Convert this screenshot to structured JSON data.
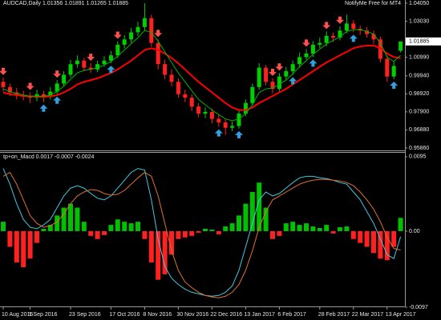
{
  "chart_data": [
    {
      "type": "candlestick",
      "title": "AUDCAD,Daily  1.01356 1.01891 1.01265 1.01885",
      "annotation": "NotifyMe Free for MT4",
      "categories": [
        "10 Aug 2016",
        null,
        null,
        null,
        "1 Sep 2016",
        null,
        null,
        null,
        null,
        null,
        "23 Sep 2016",
        null,
        null,
        null,
        null,
        null,
        "17 Oct 2016",
        null,
        null,
        null,
        null,
        "8 Nov 2016",
        null,
        null,
        null,
        null,
        "30 Nov 2016",
        null,
        null,
        null,
        null,
        "22 Dec 2016",
        null,
        null,
        null,
        null,
        "13 Jan 2017",
        null,
        null,
        null,
        null,
        "6 Feb 2017",
        null,
        null,
        null,
        null,
        null,
        "28 Feb 2017",
        null,
        null,
        null,
        null,
        "22 Mar 2017",
        null,
        null,
        null,
        null,
        "13 Apr 2017",
        null,
        null
      ],
      "open": [
        0.996,
        0.993,
        0.99,
        0.9885,
        0.988,
        0.987,
        0.989,
        0.9875,
        0.9905,
        0.995,
        1.0,
        1.006,
        1.008,
        1.004,
        1.003,
        1.006,
        1.008,
        1.011,
        1.017,
        1.02,
        1.024,
        1.027,
        1.032,
        1.018,
        1.006,
        1.0,
        0.996,
        0.989,
        0.987,
        0.982,
        0.978,
        0.979,
        0.975,
        0.973,
        0.97,
        0.971,
        0.978,
        0.984,
        0.993,
        1.004,
        0.996,
        0.992,
        0.999,
        1.002,
        1.006,
        1.01,
        1.012,
        1.017,
        1.018,
        1.022,
        1.021,
        1.025,
        1.029,
        1.026,
        1.025,
        1.023,
        1.02,
        1.009,
        0.999,
        1.01356
      ],
      "high": [
        0.9985,
        0.995,
        0.9925,
        0.991,
        0.99,
        0.9915,
        0.991,
        0.993,
        0.997,
        1.002,
        1.0085,
        1.011,
        1.0095,
        1.0065,
        1.008,
        1.0105,
        1.0135,
        1.019,
        1.0225,
        1.0265,
        1.03,
        1.0405,
        1.034,
        1.02,
        1.0085,
        1.003,
        0.998,
        0.9915,
        0.989,
        0.984,
        0.9815,
        0.981,
        0.9775,
        0.975,
        0.9735,
        0.98,
        0.986,
        0.995,
        1.0065,
        1.0055,
        0.998,
        1.001,
        1.0045,
        1.008,
        1.0125,
        1.0145,
        1.019,
        1.021,
        1.0245,
        1.024,
        1.0275,
        1.034,
        1.031,
        1.028,
        1.027,
        1.025,
        1.0215,
        1.011,
        1.0075,
        1.01891
      ],
      "low": [
        0.9905,
        0.988,
        0.986,
        0.9855,
        0.984,
        0.985,
        0.9845,
        0.986,
        0.989,
        0.9935,
        0.9985,
        1.004,
        1.002,
        1.001,
        1.0015,
        1.0045,
        1.0065,
        1.0095,
        1.015,
        1.018,
        1.022,
        1.025,
        1.016,
        1.003,
        0.9975,
        0.9935,
        0.987,
        0.9845,
        0.9795,
        0.976,
        0.9755,
        0.9725,
        0.9705,
        0.966,
        0.968,
        0.9695,
        0.9765,
        0.9825,
        0.9915,
        0.994,
        0.9895,
        0.9905,
        0.997,
        1.0,
        1.004,
        1.0085,
        1.01,
        1.015,
        1.016,
        1.0185,
        1.0195,
        1.0235,
        1.024,
        1.0225,
        1.021,
        1.0175,
        1.007,
        0.996,
        0.9975,
        1.01265
      ],
      "close": [
        0.993,
        0.99,
        0.9885,
        0.988,
        0.987,
        0.989,
        0.9875,
        0.9905,
        0.995,
        1.0,
        1.006,
        1.008,
        1.004,
        1.003,
        1.006,
        1.008,
        1.011,
        1.017,
        1.02,
        1.024,
        1.027,
        1.032,
        1.018,
        1.006,
        1.0,
        0.996,
        0.989,
        0.987,
        0.982,
        0.978,
        0.979,
        0.975,
        0.973,
        0.97,
        0.971,
        0.978,
        0.984,
        0.993,
        1.004,
        0.996,
        0.992,
        0.999,
        1.002,
        1.006,
        1.01,
        1.012,
        1.017,
        1.018,
        1.022,
        1.021,
        1.025,
        1.029,
        1.026,
        1.025,
        1.023,
        1.02,
        1.009,
        0.999,
        1.005,
        1.01885
      ],
      "up_color": "#00d000",
      "down_color": "#ff2020",
      "lines": [
        {
          "color": "#ff0000",
          "values": [
            0.99,
            0.989,
            0.9885,
            0.988,
            0.9878,
            0.9876,
            0.9875,
            0.9878,
            0.9885,
            0.99,
            0.992,
            0.9945,
            0.996,
            0.997,
            0.998,
            0.9995,
            1.001,
            1.003,
            1.0055,
            1.008,
            1.011,
            1.014,
            1.015,
            1.014,
            1.012,
            1.0095,
            1.0065,
            1.003,
            0.9995,
            0.996,
            0.993,
            0.99,
            0.987,
            0.984,
            0.9815,
            0.98,
            0.98,
            0.9815,
            0.984,
            0.986,
            0.988,
            0.99,
            0.992,
            0.9945,
            0.997,
            0.9995,
            1.002,
            1.0045,
            1.007,
            1.009,
            1.011,
            1.013,
            1.015,
            1.016,
            1.0165,
            1.0165,
            1.015,
            1.012,
            1.01,
            1.0095
          ]
        },
        {
          "color": "#00b000",
          "values": [
            0.992,
            0.9905,
            0.9893,
            0.9886,
            0.9878,
            0.988,
            0.9878,
            0.9885,
            0.9905,
            0.9935,
            0.9975,
            1.001,
            1.0025,
            1.003,
            1.004,
            1.0055,
            1.0075,
            1.0105,
            1.014,
            1.0175,
            1.021,
            1.025,
            1.024,
            1.019,
            1.013,
            1.007,
            1.001,
            0.996,
            0.991,
            0.986,
            0.983,
            0.98,
            0.9775,
            0.975,
            0.974,
            0.975,
            0.978,
            0.983,
            0.99,
            0.992,
            0.9925,
            0.9945,
            0.997,
            1.0005,
            1.0045,
            1.008,
            1.0115,
            1.0145,
            1.0175,
            1.0195,
            1.0215,
            1.0245,
            1.0255,
            1.0255,
            1.0245,
            1.023,
            1.018,
            1.01,
            1.0075,
            1.011
          ]
        }
      ],
      "down_arrows": [
        0,
        4,
        8,
        13,
        17,
        23,
        40,
        41,
        45,
        48,
        50
      ],
      "up_arrows": [
        6,
        8,
        16,
        32,
        35,
        43,
        46,
        52,
        58
      ],
      "down_arrow_color": "#ff5050",
      "up_arrow_color": "#30a0e0",
      "ylim": [
        0.9572,
        1.0423
      ],
      "yticks": [
        {
          "value": 1.0405,
          "label": "1.04050"
        },
        {
          "value": 1.0303,
          "label": "1.03030"
        },
        {
          "value": 1.0099,
          "label": "1.00990"
        },
        {
          "value": 0.9994,
          "label": "0.99940"
        },
        {
          "value": 0.9892,
          "label": "0.98920"
        },
        {
          "value": 0.979,
          "label": "0.97900"
        },
        {
          "value": 0.9688,
          "label": "0.96880"
        },
        {
          "value": 0.9586,
          "label": "0.95860"
        }
      ]
    },
    {
      "type": "macd",
      "title": "tp+on_Macd 0.0017 -0.0007 -0.0024",
      "values": [
        0.0012,
        -0.002,
        -0.004,
        -0.0046,
        -0.0035,
        -0.0015,
        0.0003,
        0.0008,
        0.002,
        0.003,
        0.0035,
        0.003,
        0.0012,
        -0.0006,
        -0.001,
        -0.0005,
        0.0008,
        0.0015,
        0.0012,
        0.001,
        0.0012,
        -0.001,
        -0.004,
        -0.0062,
        -0.0055,
        -0.003,
        -0.001,
        -0.0008,
        -0.0006,
        -0.0002,
        0.0003,
        0.0002,
        -0.0004,
        0.0006,
        0.001,
        0.002,
        0.0035,
        0.005,
        0.0062,
        0.003,
        -0.001,
        -0.0006,
        0.001,
        0.0012,
        0.0008,
        0.001,
        0.0006,
        0.0004,
        0.0008,
        -0.0003,
        0.0005,
        0.0006,
        -0.001,
        -0.0015,
        -0.002,
        -0.0028,
        -0.0035,
        -0.0037,
        -0.002,
        0.0017
      ],
      "positive_color": "#00c000",
      "negative_color": "#ff2020",
      "lines": [
        {
          "color": "#40c8e0",
          "values": [
            0.008,
            0.006,
            0.0035,
            0.0015,
            0.0005,
            0.0003,
            0.0008,
            0.0015,
            0.003,
            0.0045,
            0.0055,
            0.0058,
            0.0055,
            0.0048,
            0.0042,
            0.004,
            0.0045,
            0.0055,
            0.0065,
            0.0075,
            0.008,
            0.0078,
            0.004,
            -0.001,
            -0.0045,
            -0.006,
            -0.0068,
            -0.0074,
            -0.0078,
            -0.008,
            -0.0082,
            -0.0083,
            -0.0082,
            -0.0078,
            -0.007,
            -0.005,
            -0.002,
            0.001,
            0.004,
            0.005,
            0.0045,
            0.0048,
            0.0055,
            0.0062,
            0.0068,
            0.007,
            0.007,
            0.0068,
            0.0067,
            0.0065,
            0.0062,
            0.006,
            0.005,
            0.004,
            0.0025,
            0.001,
            -0.001,
            -0.003,
            -0.0035,
            -0.0007
          ]
        },
        {
          "color": "#e07030",
          "values": [
            0.007,
            0.0075,
            0.006,
            0.004,
            0.002,
            0.001,
            0.0005,
            0.0007,
            0.0012,
            0.0022,
            0.0035,
            0.0045,
            0.005,
            0.0053,
            0.0052,
            0.0048,
            0.0046,
            0.0047,
            0.0052,
            0.006,
            0.0068,
            0.0075,
            0.007,
            0.0045,
            0.001,
            -0.0025,
            -0.005,
            -0.0065,
            -0.0072,
            -0.0078,
            -0.0082,
            -0.0084,
            -0.0085,
            -0.0083,
            -0.0078,
            -0.0068,
            -0.005,
            -0.0025,
            0.0005,
            0.0025,
            0.004,
            0.0045,
            0.005,
            0.0055,
            0.006,
            0.0063,
            0.0065,
            0.0066,
            0.0066,
            0.0065,
            0.0064,
            0.0062,
            0.0058,
            0.005,
            0.004,
            0.0028,
            0.0012,
            -0.0008,
            -0.0022,
            -0.0024
          ]
        }
      ],
      "ylim": [
        -0.0096,
        0.0101
      ],
      "yticks": [
        0.0095,
        {
          "value": 0,
          "label": "0.00"
        },
        -0.0097
      ]
    }
  ]
}
